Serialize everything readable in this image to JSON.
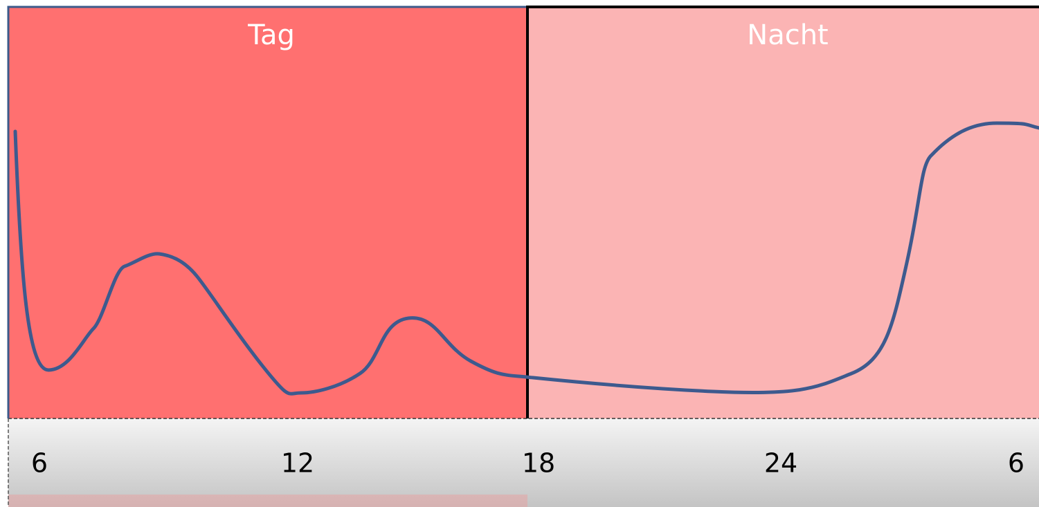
{
  "regions": [
    {
      "label": "Tag"
    },
    {
      "label": "Nacht"
    }
  ],
  "axis": {
    "labels": [
      "6",
      "12",
      "18",
      "24",
      "6"
    ]
  }
}
